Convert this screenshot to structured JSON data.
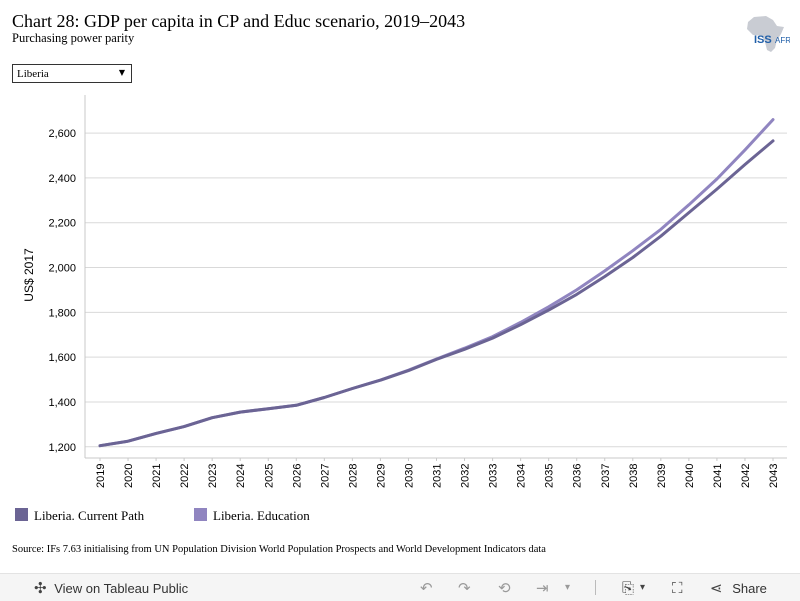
{
  "header": {
    "title": "Chart 28: GDP per capita in CP and Educ scenario, 2019–2043",
    "subtitle": "Purchasing power parity",
    "logo_text": "ISS",
    "logo_suffix": "AFRICA"
  },
  "filter": {
    "selected": "Liberia"
  },
  "colors": {
    "current_path": "#6b6494",
    "education": "#9085c0",
    "grid": "#d9d9d9",
    "axis_text": "#333333"
  },
  "chart_data": {
    "type": "line",
    "title": "Chart 28: GDP per capita in CP and Educ scenario, 2019–2043",
    "subtitle": "Purchasing power parity",
    "xlabel": "",
    "ylabel": "US$ 2017",
    "ylim": [
      1150,
      2770
    ],
    "yticks": [
      1200,
      1400,
      1600,
      1800,
      2000,
      2200,
      2400,
      2600
    ],
    "ytick_labels": [
      "1,200",
      "1,400",
      "1,600",
      "1,800",
      "2,000",
      "2,200",
      "2,400",
      "2,600"
    ],
    "x": [
      "2019",
      "2020",
      "2021",
      "2022",
      "2023",
      "2024",
      "2025",
      "2026",
      "2027",
      "2028",
      "2029",
      "2030",
      "2031",
      "2032",
      "2033",
      "2034",
      "2035",
      "2036",
      "2037",
      "2038",
      "2039",
      "2040",
      "2041",
      "2042",
      "2043"
    ],
    "grid": "horizontal",
    "legend_position": "bottom-left",
    "series": [
      {
        "name": "Liberia. Current Path",
        "color": "#6b6494",
        "values": [
          1205,
          1225,
          1260,
          1290,
          1330,
          1355,
          1370,
          1385,
          1420,
          1460,
          1497,
          1540,
          1590,
          1635,
          1685,
          1745,
          1810,
          1880,
          1960,
          2045,
          2140,
          2245,
          2350,
          2460,
          2565
        ]
      },
      {
        "name": "Liberia. Education",
        "color": "#9085c0",
        "values": [
          1205,
          1225,
          1260,
          1290,
          1330,
          1355,
          1370,
          1385,
          1420,
          1460,
          1498,
          1542,
          1592,
          1640,
          1692,
          1755,
          1825,
          1900,
          1985,
          2075,
          2170,
          2280,
          2395,
          2525,
          2660
        ]
      }
    ]
  },
  "source": "Source: IFs 7.63 initialising from UN Population Division World Population Prospects and World Development Indicators data",
  "toolbar": {
    "view_label": "View on Tableau Public",
    "share_label": "Share"
  }
}
